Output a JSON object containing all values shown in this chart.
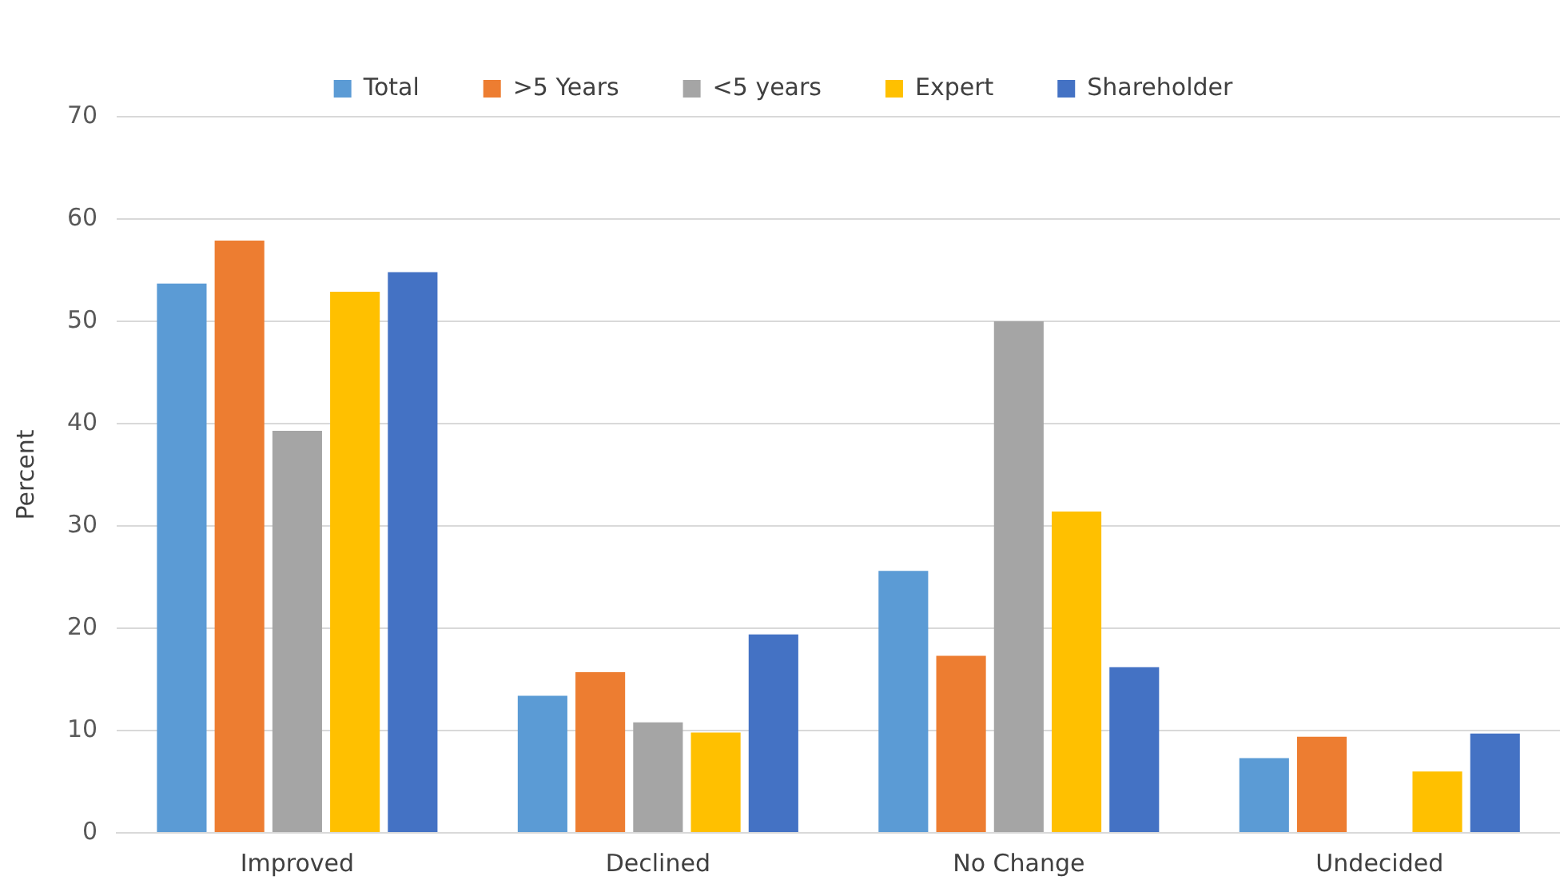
{
  "chart_data": {
    "type": "bar",
    "ylabel": "Percent",
    "categories": [
      "Improved",
      "Declined",
      "No Change",
      "Undecided"
    ],
    "series": [
      {
        "name": "Total",
        "color": "#5b9bd5",
        "values": [
          53.7,
          13.4,
          25.6,
          7.3
        ]
      },
      {
        "name": ">5 Years",
        "color": "#ed7d31",
        "values": [
          57.9,
          15.7,
          17.3,
          9.4
        ]
      },
      {
        "name": "<5 years",
        "color": "#a5a5a5",
        "values": [
          39.3,
          10.8,
          50,
          0
        ]
      },
      {
        "name": "Expert",
        "color": "#ffc000",
        "values": [
          52.9,
          9.8,
          31.4,
          6.0
        ]
      },
      {
        "name": "Shareholder",
        "color": "#4472c4",
        "values": [
          54.8,
          19.4,
          16.2,
          9.7
        ]
      }
    ],
    "ylim": [
      0,
      70
    ],
    "yticks": [
      0,
      10,
      20,
      30,
      40,
      50,
      60,
      70
    ],
    "grid": "y",
    "legend": "top"
  }
}
